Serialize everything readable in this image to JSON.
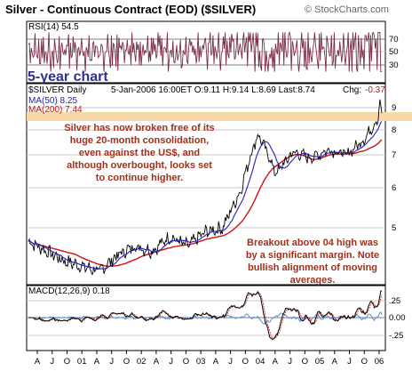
{
  "header": {
    "title": "Silver - Continuous Contract (EOD) ($SILVER)",
    "copyright": "© StockCharts.com"
  },
  "rsi_panel": {
    "label": "RSI(14) 54.5",
    "levels": [
      "70",
      "50",
      "30"
    ],
    "tag": "5-year chart"
  },
  "price_panel": {
    "symbol_label": "$SILVER Daily",
    "quote": "5-Jan-2006 16:00ET O:9.11 H:9.14 L:8.69 Last:8.74",
    "chg_label": "Chg:",
    "chg_value": "-0.37",
    "ma50_label": "MA(50) 8.25",
    "ma200_label": "MA(200) 7.44",
    "note1": [
      "Silver has now broken free of its",
      "huge 20-month consolidation,",
      "even against the US$, and",
      "although overbought, looks set",
      "to continue higher."
    ],
    "note2": [
      "Breakout above 04 high was",
      "by a significant margin. Note",
      "bullish alignment of moving",
      "averages."
    ],
    "colors": {
      "price": "#000000",
      "ma50": "#2020c0",
      "ma200": "#d01010",
      "note": "#a0301b",
      "highlight": "#f8d8a8"
    }
  },
  "macd_panel": {
    "label": "MACD(12,26,9) 0.18",
    "levels": [
      ".25",
      "0.00",
      "-.25"
    ]
  },
  "chart_data": {
    "type": "line",
    "title": "Silver - Continuous Contract (EOD) ($SILVER)",
    "x_tick_labels": [
      "A",
      "J",
      "O",
      "01",
      "A",
      "J",
      "O",
      "02",
      "A",
      "J",
      "O",
      "03",
      "A",
      "J",
      "O",
      "04",
      "A",
      "J",
      "O",
      "05",
      "A",
      "J",
      "O",
      "06"
    ],
    "price_axis_ticks": [
      "9",
      "8",
      "7",
      "6",
      "5"
    ],
    "price_series_quarterly": {
      "x": [
        "2001-01",
        "2001-04",
        "2001-07",
        "2001-10",
        "2002-01",
        "2002-04",
        "2002-07",
        "2002-10",
        "2003-01",
        "2003-04",
        "2003-07",
        "2003-10",
        "2004-01",
        "2004-04",
        "2004-07",
        "2004-10",
        "2005-01",
        "2005-04",
        "2005-07",
        "2005-10",
        "2006-01"
      ],
      "close": [
        4.7,
        4.5,
        4.3,
        4.2,
        4.1,
        4.4,
        4.6,
        4.5,
        4.8,
        4.6,
        4.9,
        5.0,
        5.9,
        7.8,
        6.4,
        7.1,
        6.9,
        7.2,
        7.0,
        7.6,
        8.74
      ]
    },
    "series": [
      {
        "name": "$SILVER",
        "values": "price"
      },
      {
        "name": "MA(50)",
        "last": 8.25
      },
      {
        "name": "MA(200)",
        "last": 7.44
      }
    ],
    "rsi": {
      "last": 54.5,
      "ylim": [
        0,
        100
      ],
      "levels": [
        70,
        50,
        30
      ]
    },
    "macd": {
      "last": 0.18,
      "levels": [
        0.25,
        0,
        -0.25
      ]
    },
    "grid": true
  }
}
